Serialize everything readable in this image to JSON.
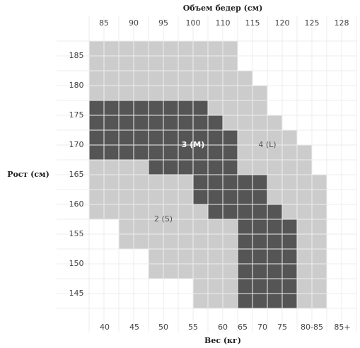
{
  "title": "Объем бедер (см)",
  "y_axis_label": "Рост (см)",
  "x_axis_label": "Вес (кг)",
  "hip_labels": [
    "85",
    "90",
    "95",
    "100",
    "110",
    "115",
    "120",
    "125",
    "128"
  ],
  "weight_labels": [
    "40",
    "45",
    "50",
    "55",
    "60",
    "65",
    "70",
    "75",
    "80-85",
    "85+"
  ],
  "height_labels": [
    "185",
    "180",
    "175",
    "170",
    "165",
    "160",
    "155",
    "150",
    "145"
  ],
  "zones": [
    {
      "label": "2 (S)",
      "color": "#cccccc",
      "text_color": "#555555"
    },
    {
      "label": "3 (M)",
      "color": "#555555",
      "text_color": "#ffffff"
    },
    {
      "label": "4 (L)",
      "color": "#cccccc",
      "text_color": "#555555"
    }
  ]
}
